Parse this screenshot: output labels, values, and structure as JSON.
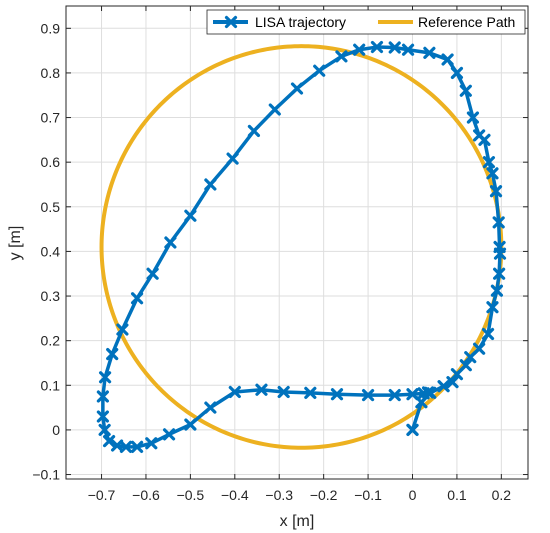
{
  "chart_data": {
    "type": "line",
    "xlabel": "x [m]",
    "ylabel": "y [m]",
    "xlim": [
      -0.78,
      0.26
    ],
    "ylim": [
      -0.11,
      0.95
    ],
    "xticks": [
      -0.7,
      -0.6,
      -0.5,
      -0.4,
      -0.3,
      -0.2,
      -0.1,
      0,
      0.1,
      0.2
    ],
    "yticks": [
      -0.1,
      0,
      0.1,
      0.2,
      0.3,
      0.4,
      0.5,
      0.6,
      0.7,
      0.8,
      0.9
    ],
    "xtick_labels": [
      "−0.7",
      "−0.6",
      "−0.5",
      "−0.4",
      "−0.3",
      "−0.2",
      "−0.1",
      "0",
      "0.1",
      "0.2"
    ],
    "ytick_labels": [
      "−0.1",
      "0",
      "0.1",
      "0.2",
      "0.3",
      "0.4",
      "0.5",
      "0.6",
      "0.7",
      "0.8",
      "0.9"
    ],
    "grid": true,
    "legend_position": "top-right",
    "series": [
      {
        "name": "LISA trajectory",
        "color": "#0072BD",
        "marker": "x",
        "x": [
          0.0,
          0.0,
          0.02,
          0.04,
          0.07,
          0.09,
          0.1,
          0.12,
          0.13,
          0.15,
          0.17,
          0.18,
          0.19,
          0.195,
          0.197,
          0.196,
          0.194,
          0.188,
          0.18,
          0.172,
          0.162,
          0.15,
          0.136,
          0.12,
          0.1,
          0.079,
          0.038,
          -0.01,
          -0.04,
          -0.08,
          -0.12,
          -0.16,
          -0.21,
          -0.26,
          -0.31,
          -0.357,
          -0.405,
          -0.455,
          -0.5,
          -0.545,
          -0.585,
          -0.62,
          -0.653,
          -0.676,
          -0.692,
          -0.697,
          -0.697,
          -0.693,
          -0.683,
          -0.665,
          -0.645,
          -0.62,
          -0.588,
          -0.548,
          -0.5,
          -0.455,
          -0.4,
          -0.34,
          -0.29,
          -0.23,
          -0.17,
          -0.1,
          -0.04,
          0.0,
          0.025,
          0.035
        ],
        "y": [
          0.0,
          0.0,
          0.062,
          0.083,
          0.098,
          0.107,
          0.125,
          0.145,
          0.163,
          0.182,
          0.215,
          0.275,
          0.312,
          0.35,
          0.395,
          0.41,
          0.465,
          0.535,
          0.575,
          0.6,
          0.65,
          0.66,
          0.7,
          0.76,
          0.8,
          0.83,
          0.845,
          0.852,
          0.857,
          0.858,
          0.852,
          0.837,
          0.805,
          0.765,
          0.718,
          0.67,
          0.608,
          0.55,
          0.48,
          0.42,
          0.35,
          0.295,
          0.225,
          0.17,
          0.118,
          0.075,
          0.03,
          0.0,
          -0.025,
          -0.035,
          -0.038,
          -0.038,
          -0.03,
          -0.01,
          0.012,
          0.05,
          0.085,
          0.09,
          0.085,
          0.083,
          0.08,
          0.078,
          0.078,
          0.08,
          0.082,
          0.084
        ]
      },
      {
        "name": "Reference Path",
        "color": "#EDB120",
        "marker": "none",
        "shape": "circle",
        "center": [
          -0.25,
          0.41
        ],
        "radius": 0.45
      }
    ]
  }
}
